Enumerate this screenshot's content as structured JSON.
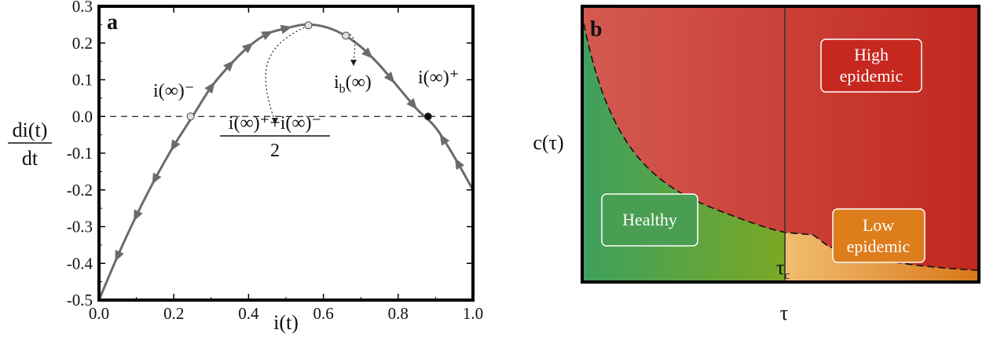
{
  "chart_data": [
    {
      "panel": "a",
      "type": "line",
      "xlabel": "i(t)",
      "ylabel_num": "di(t)",
      "ylabel_den": "dt",
      "xlim": [
        0.0,
        1.0
      ],
      "ylim": [
        -0.5,
        0.3
      ],
      "x_ticks": [
        "0.0",
        "0.2",
        "0.4",
        "0.6",
        "0.8",
        "1.0"
      ],
      "y_ticks": [
        "0.3",
        "0.2",
        "0.1",
        "0.0",
        "-0.1",
        "-0.2",
        "-0.3",
        "-0.4",
        "-0.5"
      ],
      "series": [
        {
          "x": [
            0.0,
            0.05,
            0.1,
            0.15,
            0.2,
            0.25,
            0.3,
            0.35,
            0.4,
            0.45,
            0.5,
            0.55,
            0.6,
            0.65,
            0.7,
            0.75,
            0.8,
            0.85,
            0.9,
            0.95,
            1.0
          ],
          "y": [
            -0.5,
            -0.38,
            -0.27,
            -0.17,
            -0.08,
            0.0,
            0.08,
            0.14,
            0.19,
            0.225,
            0.24,
            0.25,
            0.245,
            0.225,
            0.19,
            0.14,
            0.08,
            0.02,
            -0.03,
            -0.11,
            -0.2
          ]
        }
      ],
      "baseline": 0.0,
      "flow_arrows": [
        {
          "x": 0.05,
          "dir": "left"
        },
        {
          "x": 0.1,
          "dir": "left"
        },
        {
          "x": 0.15,
          "dir": "left"
        },
        {
          "x": 0.2,
          "dir": "left"
        },
        {
          "x": 0.3,
          "dir": "right"
        },
        {
          "x": 0.35,
          "dir": "right"
        },
        {
          "x": 0.4,
          "dir": "right"
        },
        {
          "x": 0.45,
          "dir": "right"
        },
        {
          "x": 0.5,
          "dir": "right"
        },
        {
          "x": 0.72,
          "dir": "right"
        },
        {
          "x": 0.78,
          "dir": "right"
        },
        {
          "x": 0.84,
          "dir": "right"
        },
        {
          "x": 0.92,
          "dir": "left"
        },
        {
          "x": 0.96,
          "dir": "left"
        }
      ],
      "markers": [
        {
          "x": 0.245,
          "y": 0.0,
          "style": "open"
        },
        {
          "x": 0.56,
          "y": 0.248,
          "style": "open"
        },
        {
          "x": 0.66,
          "y": 0.22,
          "style": "open"
        },
        {
          "x": 0.88,
          "y": 0.0,
          "style": "filled"
        }
      ],
      "annotations": {
        "i_minus": "i(∞)⁻",
        "i_plus": "i(∞)⁺",
        "i_b": "i",
        "i_b_sub": "b",
        "i_b_rest": "(∞)",
        "frac_num": "i(∞)⁺+i(∞)⁻",
        "frac_den": "2"
      },
      "colors": {
        "curve": "#6b6b6b",
        "marker_open_fill": "#e0e0e0",
        "marker_filled": "#111111"
      }
    },
    {
      "panel": "b",
      "type": "area",
      "xlabel": "τ",
      "ylabel": "c(τ)",
      "critical_label": "τ",
      "critical_sub": "c",
      "regions": {
        "high": [
          "High",
          "epidemic"
        ],
        "low": [
          "Low",
          "epidemic"
        ],
        "healthy": [
          "Healthy"
        ]
      },
      "colors": {
        "high_left": "#d45a52",
        "high_right": "#c0281f",
        "healthy_left": "#3fa05e",
        "healthy_right": "#7aa824",
        "low_left": "#f0bd70",
        "low_right": "#d9781a"
      }
    }
  ]
}
